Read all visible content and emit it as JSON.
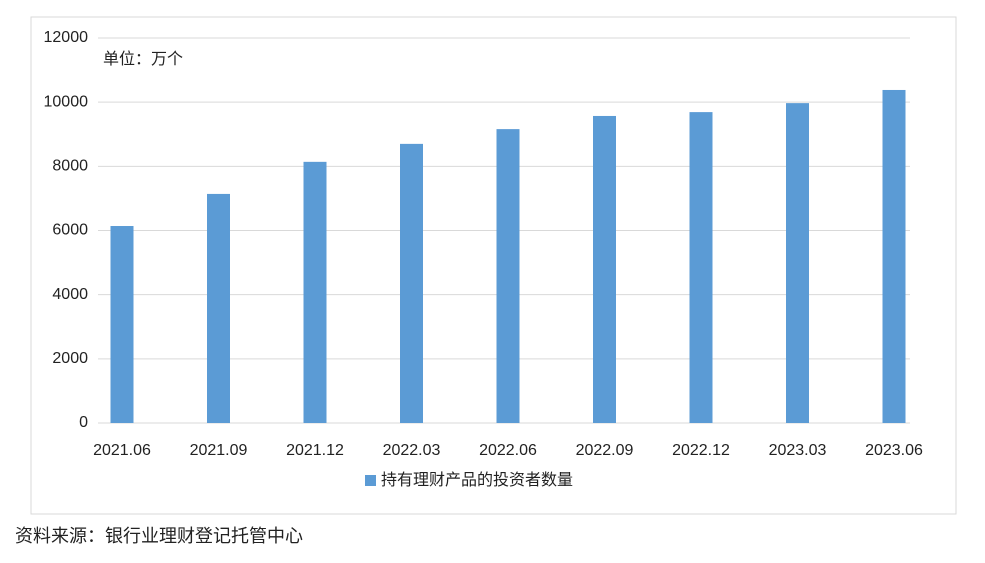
{
  "chart_data": {
    "type": "bar",
    "annotation": "单位：万个",
    "categories": [
      "2021.06",
      "2021.09",
      "2021.12",
      "2022.03",
      "2022.06",
      "2022.09",
      "2022.12",
      "2023.03",
      "2023.06"
    ],
    "series": [
      {
        "name": "持有理财产品的投资者数量",
        "color": "#5b9bd5",
        "values": [
          6140,
          7140,
          8140,
          8700,
          9160,
          9570,
          9690,
          9970,
          10380
        ]
      }
    ],
    "ylim": [
      0,
      12000
    ],
    "yticks": [
      0,
      2000,
      4000,
      6000,
      8000,
      10000,
      12000
    ],
    "grid": true,
    "legend": "bottom",
    "source": "资料来源：银行业理财登记托管中心"
  }
}
